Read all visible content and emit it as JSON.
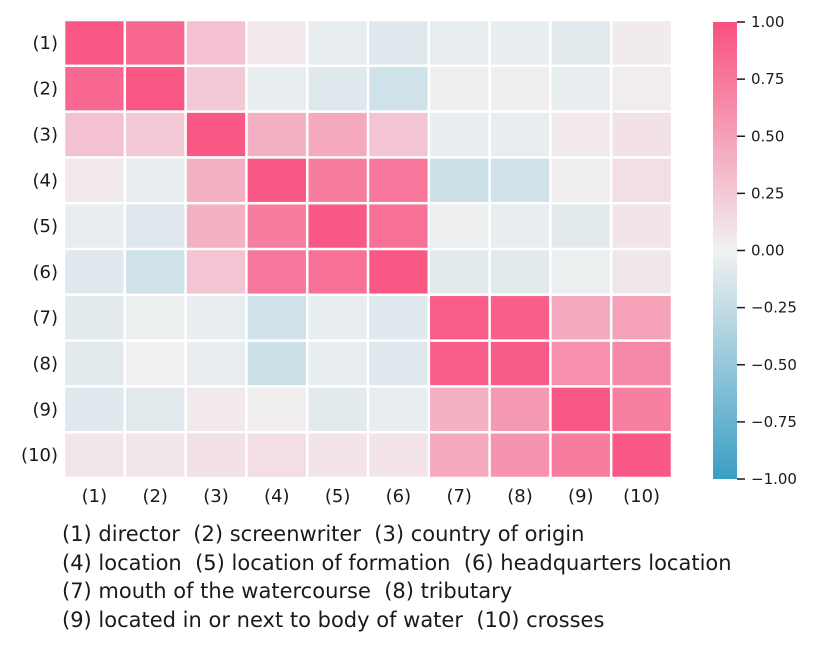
{
  "chart_data": {
    "type": "heatmap",
    "row_labels": [
      "(1)",
      "(2)",
      "(3)",
      "(4)",
      "(5)",
      "(6)",
      "(7)",
      "(8)",
      "(9)",
      "(10)"
    ],
    "col_labels": [
      "(1)",
      "(2)",
      "(3)",
      "(4)",
      "(5)",
      "(6)",
      "(7)",
      "(8)",
      "(9)",
      "(10)"
    ],
    "values": [
      [
        0.95,
        0.85,
        0.3,
        0.05,
        -0.05,
        -0.1,
        -0.05,
        -0.05,
        -0.08,
        0.04
      ],
      [
        0.85,
        0.95,
        0.25,
        -0.05,
        -0.1,
        -0.18,
        -0.02,
        0.02,
        -0.05,
        0.03
      ],
      [
        0.3,
        0.25,
        0.95,
        0.4,
        0.45,
        0.28,
        -0.05,
        -0.05,
        0.05,
        0.1
      ],
      [
        0.05,
        -0.05,
        0.4,
        0.95,
        0.72,
        0.75,
        -0.2,
        -0.18,
        0.02,
        0.12
      ],
      [
        -0.05,
        -0.1,
        0.4,
        0.72,
        0.95,
        0.8,
        -0.02,
        -0.05,
        -0.08,
        0.08
      ],
      [
        -0.1,
        -0.18,
        0.28,
        0.75,
        0.8,
        0.95,
        -0.08,
        -0.08,
        -0.03,
        0.06
      ],
      [
        -0.08,
        -0.03,
        -0.05,
        -0.18,
        -0.05,
        -0.1,
        0.92,
        0.9,
        0.45,
        0.5
      ],
      [
        -0.08,
        0.0,
        -0.05,
        -0.2,
        -0.05,
        -0.1,
        0.9,
        0.93,
        0.6,
        0.65
      ],
      [
        -0.1,
        -0.08,
        0.05,
        0.02,
        -0.08,
        -0.05,
        0.4,
        0.55,
        0.95,
        0.7
      ],
      [
        0.06,
        0.06,
        0.1,
        0.12,
        0.08,
        0.08,
        0.45,
        0.58,
        0.72,
        0.95
      ]
    ],
    "colorbar": {
      "vmin": -1.0,
      "vmax": 1.0,
      "ticks": [
        "1.00",
        "0.75",
        "0.50",
        "0.25",
        "0.00",
        "−0.25",
        "−0.50",
        "−0.75",
        "−1.00"
      ],
      "tick_values": [
        1.0,
        0.75,
        0.5,
        0.25,
        0.0,
        -0.25,
        -0.5,
        -0.75,
        -1.0
      ],
      "high_color": "#f9507f",
      "mid_color": "#f1f1f1",
      "low_color": "#3a9ec4"
    },
    "cell_border_color": "#ffffff",
    "legend_lines": [
      "(1) director  (2) screenwriter  (3) country of origin",
      "(4) location  (5) location of formation  (6) headquarters location",
      "(7) mouth of the watercourse  (8) tributary",
      "(9) located in or next to body of water  (10) crosses"
    ]
  }
}
